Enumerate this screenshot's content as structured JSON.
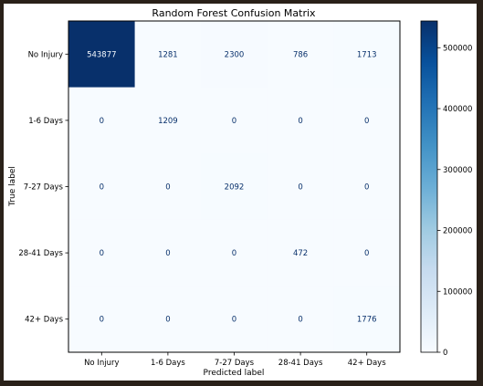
{
  "chart_data": {
    "type": "heatmap",
    "title": "Random Forest Confusion Matrix",
    "xlabel": "Predicted label",
    "ylabel": "True label",
    "x_categories": [
      "No Injury",
      "1-6 Days",
      "7-27 Days",
      "28-41 Days",
      "42+ Days"
    ],
    "y_categories": [
      "No Injury",
      "1-6 Days",
      "7-27 Days",
      "28-41 Days",
      "42+ Days"
    ],
    "values": [
      [
        543877,
        1281,
        2300,
        786,
        1713
      ],
      [
        0,
        1209,
        0,
        0,
        0
      ],
      [
        0,
        0,
        2092,
        0,
        0
      ],
      [
        0,
        0,
        0,
        472,
        0
      ],
      [
        0,
        0,
        0,
        0,
        1776
      ]
    ],
    "colormap": "Blues",
    "color_low": "#f7fbff",
    "color_high": "#08306b",
    "colorbar": {
      "range": [
        0,
        543877
      ],
      "ticks": [
        0,
        100000,
        200000,
        300000,
        400000,
        500000
      ],
      "tick_labels": [
        "0",
        "100000",
        "200000",
        "300000",
        "400000",
        "500000"
      ]
    },
    "grid": false
  }
}
